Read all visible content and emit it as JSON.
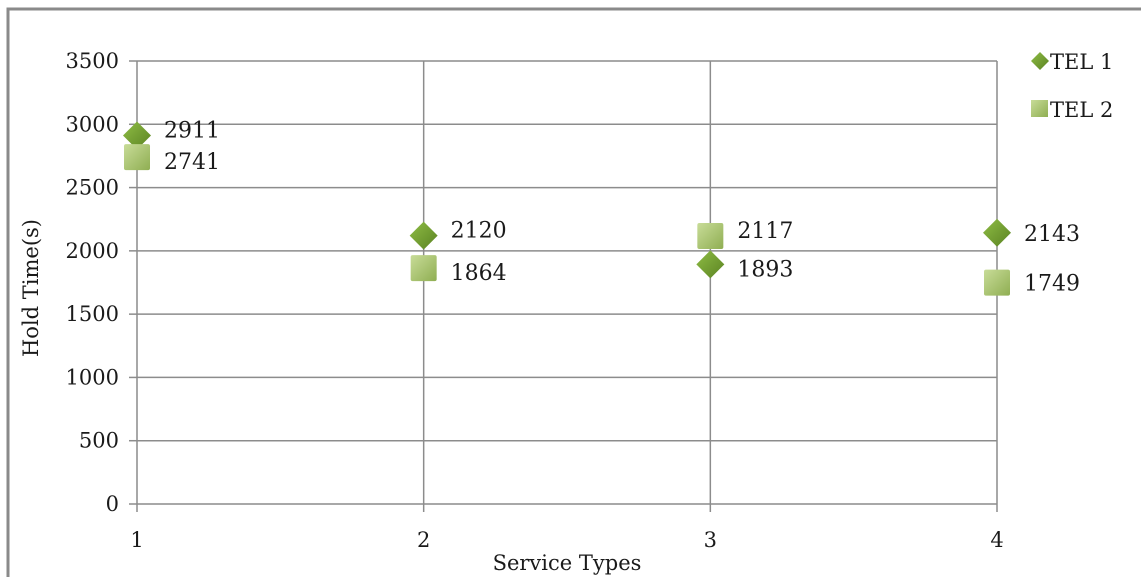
{
  "chart_data": {
    "type": "scatter",
    "title": "",
    "xlabel": "Service Types",
    "ylabel": "Hold Time(s)",
    "x": [
      1,
      2,
      3,
      4
    ],
    "xlim": [
      1,
      4
    ],
    "ylim": [
      0,
      3500
    ],
    "x_ticks": [
      "1",
      "2",
      "3",
      "4"
    ],
    "y_ticks": [
      "0",
      "500",
      "1000",
      "1500",
      "2000",
      "2500",
      "3000",
      "3500"
    ],
    "grid": true,
    "legend_position": "top-right",
    "series": [
      {
        "name": "TEL 1",
        "marker": "diamond-icon",
        "color": "#6f9a2c",
        "values": [
          2911,
          2120,
          1893,
          2143
        ],
        "labels": [
          "2911",
          "2120",
          "1893",
          "2143"
        ]
      },
      {
        "name": "TEL 2",
        "marker": "square-icon",
        "color": "#a9c36d",
        "values": [
          2741,
          1864,
          2117,
          1749
        ],
        "labels": [
          "2741",
          "1864",
          "2117",
          "1749"
        ]
      }
    ]
  }
}
